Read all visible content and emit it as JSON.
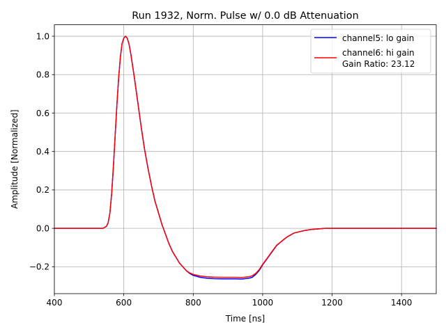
{
  "chart_data": {
    "type": "line",
    "title": "Run 1932, Norm. Pulse w/ 0.0 dB Attenuation",
    "xlabel": "Time [ns]",
    "ylabel": "Amplitude [Normalized]",
    "xlim": [
      400,
      1500
    ],
    "ylim": [
      -0.34,
      1.06
    ],
    "x_ticks": [
      400,
      600,
      800,
      1000,
      1200,
      1400
    ],
    "x_tick_labels": [
      "400",
      "600",
      "800",
      "1000",
      "1200",
      "1400"
    ],
    "y_ticks": [
      -0.2,
      0.0,
      0.2,
      0.4,
      0.6,
      0.8,
      1.0
    ],
    "y_tick_labels": [
      "−0.2",
      "0.0",
      "0.2",
      "0.4",
      "0.6",
      "0.8",
      "1.0"
    ],
    "grid": true,
    "legend": {
      "position": "top-right",
      "entries": [
        {
          "label": "channel5: lo gain",
          "color": "#0000ff"
        },
        {
          "label": "channel6: hi gain",
          "color": "#ff0000"
        }
      ],
      "extra_text": "Gain Ratio: 23.12"
    },
    "x": [
      400,
      450,
      500,
      540,
      550,
      555,
      560,
      565,
      570,
      575,
      580,
      585,
      590,
      595,
      600,
      605,
      610,
      615,
      620,
      625,
      630,
      640,
      650,
      660,
      670,
      680,
      690,
      700,
      710,
      720,
      730,
      740,
      750,
      760,
      770,
      780,
      790,
      800,
      820,
      840,
      860,
      880,
      900,
      920,
      940,
      960,
      970,
      980,
      990,
      1000,
      1010,
      1020,
      1030,
      1040,
      1050,
      1060,
      1070,
      1080,
      1090,
      1100,
      1120,
      1140,
      1160,
      1180,
      1200,
      1250,
      1300,
      1350,
      1400,
      1450,
      1500
    ],
    "series": [
      {
        "name": "channel5: lo gain",
        "color": "#0000ff",
        "values": [
          0.0,
          0.0,
          0.0,
          0.0,
          0.01,
          0.03,
          0.08,
          0.18,
          0.32,
          0.48,
          0.64,
          0.78,
          0.89,
          0.96,
          0.99,
          1.0,
          0.99,
          0.96,
          0.91,
          0.85,
          0.79,
          0.66,
          0.53,
          0.41,
          0.31,
          0.22,
          0.14,
          0.08,
          0.02,
          -0.03,
          -0.08,
          -0.12,
          -0.15,
          -0.18,
          -0.2,
          -0.22,
          -0.235,
          -0.245,
          -0.255,
          -0.26,
          -0.262,
          -0.263,
          -0.263,
          -0.263,
          -0.264,
          -0.26,
          -0.255,
          -0.24,
          -0.22,
          -0.19,
          -0.165,
          -0.14,
          -0.115,
          -0.09,
          -0.075,
          -0.06,
          -0.045,
          -0.035,
          -0.025,
          -0.02,
          -0.012,
          -0.006,
          -0.003,
          0.0,
          0.0,
          0.0,
          0.0,
          0.0,
          0.0,
          0.0,
          0.0
        ]
      },
      {
        "name": "channel6: hi gain",
        "color": "#ff0000",
        "values": [
          0.0,
          0.0,
          0.0,
          0.0,
          0.01,
          0.03,
          0.08,
          0.18,
          0.32,
          0.48,
          0.64,
          0.78,
          0.89,
          0.96,
          0.99,
          1.0,
          0.99,
          0.96,
          0.91,
          0.85,
          0.79,
          0.66,
          0.53,
          0.41,
          0.31,
          0.22,
          0.14,
          0.08,
          0.02,
          -0.03,
          -0.08,
          -0.12,
          -0.15,
          -0.18,
          -0.2,
          -0.22,
          -0.232,
          -0.24,
          -0.248,
          -0.252,
          -0.254,
          -0.255,
          -0.255,
          -0.255,
          -0.256,
          -0.252,
          -0.247,
          -0.235,
          -0.215,
          -0.187,
          -0.163,
          -0.138,
          -0.113,
          -0.089,
          -0.074,
          -0.059,
          -0.045,
          -0.035,
          -0.025,
          -0.02,
          -0.012,
          -0.006,
          -0.003,
          0.0,
          0.0,
          0.0,
          0.0,
          0.0,
          0.0,
          0.0,
          0.0
        ]
      }
    ]
  }
}
